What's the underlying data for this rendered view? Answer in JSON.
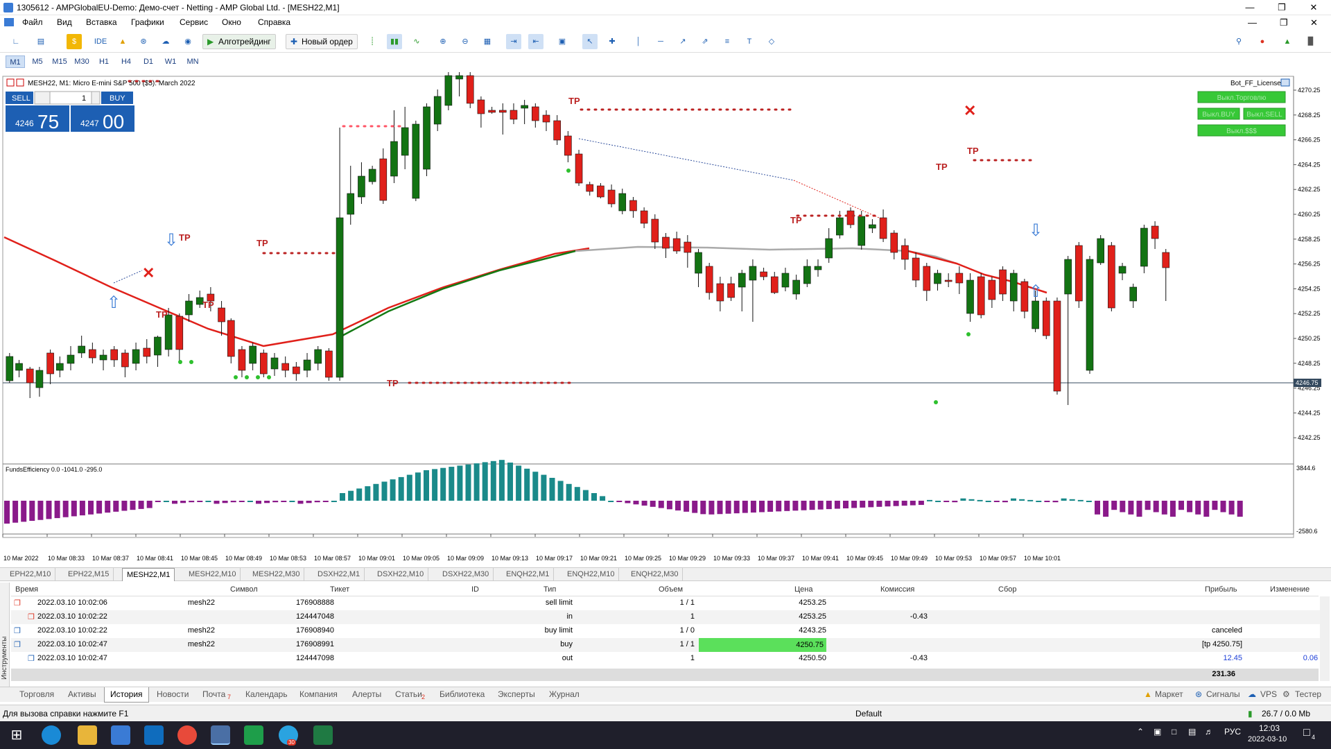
{
  "window": {
    "title": "1305612 - AMPGlobalEU-Demo: Демо-счет - Netting - AMP Global Ltd. - [MESH22,M1]"
  },
  "menu": [
    "Файл",
    "Вид",
    "Вставка",
    "Графики",
    "Сервис",
    "Окно",
    "Справка"
  ],
  "toolbar": {
    "ide": "IDE",
    "algotrading": "Алготрейдинг",
    "new_order": "Новый ордер"
  },
  "timeframes": [
    "M1",
    "M5",
    "M15",
    "M30",
    "H1",
    "H4",
    "D1",
    "W1",
    "MN"
  ],
  "chart": {
    "header": "MESH22, M1:  Micro E-mini S&P 500 ($5): March 2022",
    "license": "Bot_FF_License",
    "trade_panel": {
      "sell": "SELL",
      "buy": "BUY",
      "lot": "1",
      "bid_main": "4246",
      "bid_big": "75",
      "ask_main": "4247",
      "ask_big": "00"
    },
    "bot_buttons": [
      "Выкл.Торговлю",
      "Выкл.BUY",
      "Выкл.SELL",
      "Выкл.$$$"
    ],
    "price_ticks": [
      "4270.25",
      "4268.25",
      "4266.25",
      "4264.25",
      "4262.25",
      "4260.25",
      "4258.25",
      "4256.25",
      "4254.25",
      "4252.25",
      "4250.25",
      "4248.25",
      "4246.25",
      "4244.25",
      "4242.25"
    ],
    "current_price": "4246.75",
    "indicator_label": "FundsEfficiency 0.0 -1041.0 -295.0",
    "ind_ticks": [
      "3844.6",
      "-2580.6"
    ],
    "time_labels": [
      "10 Mar 2022",
      "10 Mar 08:33",
      "10 Mar 08:37",
      "10 Mar 08:41",
      "10 Mar 08:45",
      "10 Mar 08:49",
      "10 Mar 08:53",
      "10 Mar 08:57",
      "10 Mar 09:01",
      "10 Mar 09:05",
      "10 Mar 09:09",
      "10 Mar 09:13",
      "10 Mar 09:17",
      "10 Mar 09:21",
      "10 Mar 09:25",
      "10 Mar 09:29",
      "10 Mar 09:33",
      "10 Mar 09:37",
      "10 Mar 09:41",
      "10 Mar 09:45",
      "10 Mar 09:49",
      "10 Mar 09:53",
      "10 Mar 09:57",
      "10 Mar 10:01"
    ],
    "tp_label": "TP"
  },
  "symbol_tabs": [
    "EPH22,M10",
    "EPH22,M15",
    "MESH22,M1",
    "MESH22,M10",
    "MESH22,M30",
    "DSXH22,M1",
    "DSXH22,M10",
    "DSXH22,M30",
    "ENQH22,M1",
    "ENQH22,M10",
    "ENQH22,M30"
  ],
  "history": {
    "headers": [
      "Время",
      "Символ",
      "Тикет",
      "ID",
      "Тип",
      "Объем",
      "Цена",
      "Комиссия",
      "Сбор",
      "Прибыль",
      "Изменение"
    ],
    "rows": [
      {
        "time": "2022.03.10 10:02:06",
        "symbol": "mesh22",
        "ticket": "176908888",
        "type": "sell limit",
        "volume": "1 / 1",
        "price": "4253.25",
        "commission": "",
        "profit": "",
        "change": ""
      },
      {
        "time": "2022.03.10 10:02:22",
        "symbol": "",
        "ticket": "124447048",
        "type": "in",
        "volume": "1",
        "price": "4253.25",
        "commission": "-0.43",
        "profit": "",
        "change": ""
      },
      {
        "time": "2022.03.10 10:02:22",
        "symbol": "mesh22",
        "ticket": "176908940",
        "type": "buy limit",
        "volume": "1 / 0",
        "price": "4243.25",
        "commission": "",
        "profit": "canceled",
        "change": ""
      },
      {
        "time": "2022.03.10 10:02:47",
        "symbol": "mesh22",
        "ticket": "176908991",
        "type": "buy",
        "volume": "1 / 1",
        "price": "4250.75",
        "commission": "",
        "profit": "[tp 4250.75]",
        "change": ""
      },
      {
        "time": "2022.03.10 10:02:47",
        "symbol": "",
        "ticket": "124447098",
        "type": "out",
        "volume": "1",
        "price": "4250.50",
        "commission": "-0.43",
        "profit": "12.45",
        "change": "0.06 %"
      }
    ],
    "total": "231.36",
    "side_label": "Инструменты"
  },
  "bottom_tabs": [
    "Торговля",
    "Активы",
    "История",
    "Новости",
    "Почта",
    "Календарь",
    "Компания",
    "Алерты",
    "Статьи",
    "Библиотека",
    "Эксперты",
    "Журнал"
  ],
  "bottom_badges": {
    "mail": "7",
    "articles": "2"
  },
  "right_tabs": [
    "Маркет",
    "Сигналы",
    "VPS",
    "Тестер"
  ],
  "status": {
    "help": "Для вызова справки нажмите F1",
    "profile": "Default",
    "traffic": "26.7 / 0.0 Mb"
  },
  "taskbar": {
    "lang": "РУС",
    "time": "12:03",
    "date": "2022-03-10",
    "notif": "4",
    "tg_badge": "30"
  }
}
